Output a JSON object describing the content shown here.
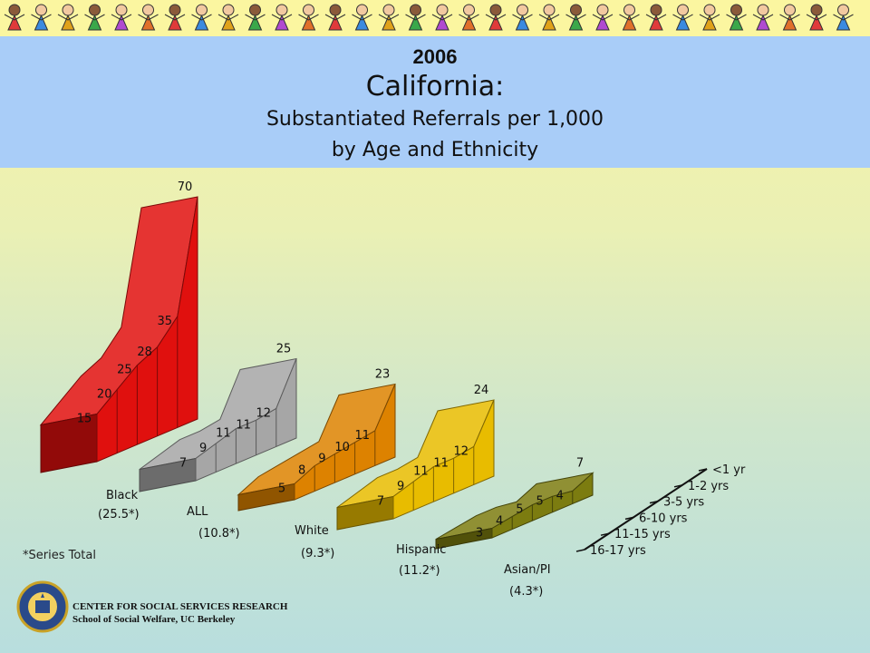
{
  "header": {
    "year": "2006",
    "state": "California:",
    "subtitle_line1": "Substantiated Referrals per 1,000",
    "subtitle_line2": "by Age and Ethnicity"
  },
  "footnote": "*Series Total",
  "footer": {
    "org_line1": "CENTER FOR SOCIAL SERVICES RESEARCH",
    "org_line2": "School of Social Welfare, UC Berkeley"
  },
  "colors": {
    "title_band": "#a9cdf8",
    "banner": "#fbf6a0"
  },
  "chart_data": {
    "type": "area",
    "title": "California: Substantiated Referrals per 1,000",
    "subtitle": "by Age and Ethnicity",
    "categories": [
      "<1 yr",
      "1-2 yrs",
      "3-5 yrs",
      "6-10 yrs",
      "11-15 yrs",
      "16-17 yrs"
    ],
    "series": [
      {
        "name": "Black",
        "total_label": "(25.5*)",
        "values": [
          70,
          35,
          28,
          25,
          20,
          15
        ],
        "color": "#e0100e"
      },
      {
        "name": "ALL",
        "total_label": "(10.8*)",
        "values": [
          25,
          12,
          11,
          11,
          9,
          7
        ],
        "color": "#a6a6a6"
      },
      {
        "name": "White",
        "total_label": "(9.3*)",
        "values": [
          23,
          11,
          10,
          9,
          8,
          5
        ],
        "color": "#dd8200"
      },
      {
        "name": "Hispanic",
        "total_label": "(11.2*)",
        "values": [
          24,
          12,
          11,
          11,
          9,
          7
        ],
        "color": "#e8bc00"
      },
      {
        "name": "Asian/PI",
        "total_label": "(4.3*)",
        "values": [
          7,
          4,
          5,
          5,
          4,
          3
        ],
        "color": "#7c7c10"
      }
    ]
  }
}
